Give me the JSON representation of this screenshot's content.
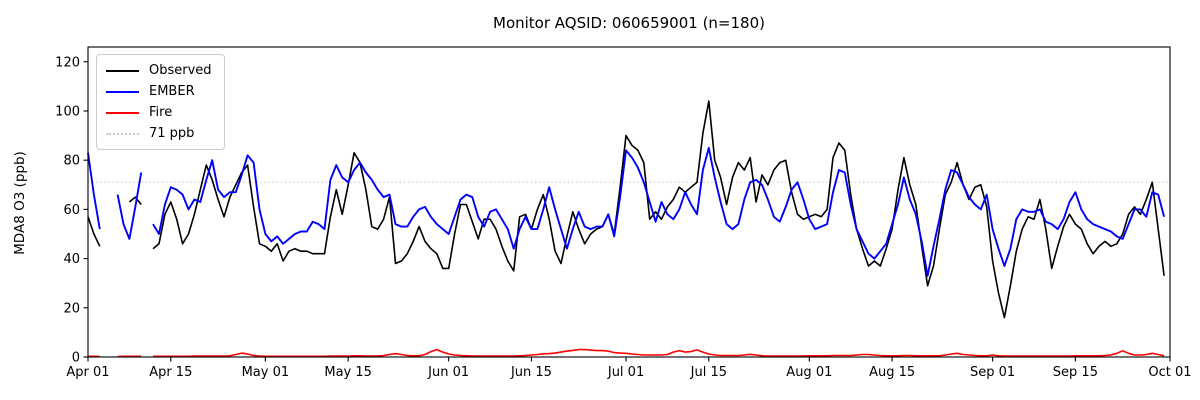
{
  "header": {
    "title": "Monitor AQSID: 060659001 (n=180)"
  },
  "chart_data": {
    "type": "line",
    "title": "Monitor AQSID: 060659001 (n=180)",
    "xlabel": "",
    "ylabel": "MDA8 O3 (ppb)",
    "ylim": [
      0,
      126
    ],
    "grid": false,
    "x_axis": {
      "unit": "day",
      "total_days": 183,
      "start_label": "Apr 01",
      "end_label": "Oct 01",
      "ticks": [
        {
          "day": 0,
          "label": "Apr 01"
        },
        {
          "day": 14,
          "label": "Apr 15"
        },
        {
          "day": 30,
          "label": "May 01"
        },
        {
          "day": 44,
          "label": "May 15"
        },
        {
          "day": 61,
          "label": "Jun 01"
        },
        {
          "day": 75,
          "label": "Jun 15"
        },
        {
          "day": 91,
          "label": "Jul 01"
        },
        {
          "day": 105,
          "label": "Jul 15"
        },
        {
          "day": 122,
          "label": "Aug 01"
        },
        {
          "day": 136,
          "label": "Aug 15"
        },
        {
          "day": 153,
          "label": "Sep 01"
        },
        {
          "day": 167,
          "label": "Sep 15"
        },
        {
          "day": 183,
          "label": "Oct 01"
        }
      ]
    },
    "y_ticks": [
      0,
      20,
      40,
      60,
      80,
      100,
      120
    ],
    "threshold": {
      "value": 71,
      "label": "71 ppb",
      "color": "#d0d0d0"
    },
    "legend": {
      "position": "upper-left",
      "entries": [
        {
          "label": "Observed",
          "color": "#000000",
          "dash": false
        },
        {
          "label": "EMBER",
          "color": "#0000ff",
          "dash": false
        },
        {
          "label": "Fire",
          "color": "#ff0000",
          "dash": false
        },
        {
          "label": "71 ppb",
          "color": "#c8c8c8",
          "dash": true
        }
      ]
    },
    "series": [
      {
        "name": "Observed",
        "color": "#000000",
        "width": 1.6,
        "values": [
          57,
          50,
          45,
          null,
          null,
          null,
          null,
          63,
          65,
          62,
          null,
          44,
          46,
          58,
          63,
          56,
          46,
          50,
          58,
          68,
          78,
          72,
          64,
          57,
          65,
          70,
          75,
          78,
          61,
          46,
          45,
          43,
          46,
          39,
          43,
          44,
          43,
          43,
          42,
          42,
          42,
          57,
          68,
          58,
          70,
          83,
          79,
          68,
          53,
          52,
          56,
          65,
          38,
          39,
          42,
          47,
          53,
          47,
          44,
          42,
          36,
          36,
          50,
          62,
          62,
          55,
          48,
          56,
          56,
          52,
          45,
          39,
          35,
          57,
          58,
          52,
          60,
          66,
          56,
          43,
          38,
          49,
          59,
          52,
          46,
          50,
          52,
          53,
          58,
          50,
          69,
          90,
          86,
          84,
          79,
          56,
          59,
          56,
          61,
          64,
          69,
          67,
          69,
          71,
          91,
          104,
          80,
          73,
          62,
          73,
          79,
          76,
          81,
          63,
          74,
          70,
          76,
          79,
          80,
          67,
          58,
          56,
          57,
          58,
          57,
          60,
          81,
          87,
          84,
          66,
          52,
          44,
          37,
          39,
          37,
          44,
          52,
          68,
          81,
          70,
          62,
          45,
          29,
          37,
          52,
          66,
          71,
          79,
          70,
          64,
          69,
          70,
          61,
          39,
          26,
          16,
          29,
          43,
          52,
          57,
          56,
          64,
          52,
          36,
          45,
          53,
          58,
          54,
          52,
          46,
          42,
          45,
          47,
          45,
          46,
          50,
          58,
          61,
          58,
          64,
          71,
          52,
          33
        ]
      },
      {
        "name": "EMBER",
        "color": "#0000ff",
        "width": 1.9,
        "values": [
          83,
          66,
          52,
          null,
          null,
          66,
          54,
          48,
          61,
          75,
          null,
          54,
          50,
          62,
          69,
          68,
          66,
          60,
          64,
          63,
          72,
          80,
          68,
          65,
          67,
          67,
          74,
          82,
          79,
          60,
          50,
          47,
          49,
          46,
          48,
          50,
          51,
          51,
          55,
          54,
          52,
          72,
          78,
          73,
          71,
          76,
          79,
          75,
          72,
          68,
          65,
          66,
          54,
          53,
          53,
          57,
          60,
          61,
          57,
          54,
          52,
          50,
          57,
          64,
          66,
          65,
          57,
          53,
          59,
          60,
          56,
          52,
          44,
          52,
          57,
          52,
          52,
          60,
          69,
          60,
          52,
          44,
          52,
          59,
          53,
          52,
          53,
          53,
          58,
          49,
          65,
          84,
          81,
          77,
          71,
          63,
          55,
          63,
          58,
          56,
          60,
          67,
          62,
          58,
          76,
          85,
          73,
          63,
          54,
          52,
          54,
          64,
          71,
          72,
          70,
          64,
          57,
          55,
          61,
          68,
          71,
          64,
          56,
          52,
          53,
          54,
          67,
          76,
          75,
          62,
          52,
          47,
          42,
          40,
          43,
          46,
          54,
          62,
          73,
          64,
          58,
          47,
          33,
          45,
          56,
          68,
          76,
          75,
          70,
          65,
          62,
          60,
          66,
          52,
          44,
          37,
          44,
          56,
          60,
          59,
          59,
          60,
          55,
          54,
          52,
          56,
          63,
          67,
          60,
          56,
          54,
          53,
          52,
          51,
          49,
          48,
          54,
          60,
          60,
          57,
          67,
          66,
          57
        ]
      },
      {
        "name": "Fire",
        "color": "#ff0000",
        "width": 1.6,
        "values": [
          0.3,
          0.3,
          0.2,
          null,
          null,
          0.2,
          0.3,
          0.3,
          0.3,
          0.3,
          null,
          0.3,
          0.3,
          0.3,
          0.3,
          0.3,
          0.3,
          0.3,
          0.4,
          0.4,
          0.4,
          0.4,
          0.4,
          0.4,
          0.5,
          1.0,
          1.6,
          1.2,
          0.6,
          0.4,
          0.3,
          0.3,
          0.3,
          0.3,
          0.3,
          0.3,
          0.3,
          0.3,
          0.3,
          0.3,
          0.3,
          0.4,
          0.4,
          0.4,
          0.4,
          0.5,
          0.5,
          0.4,
          0.4,
          0.4,
          0.6,
          1.0,
          1.4,
          1.0,
          0.6,
          0.5,
          0.5,
          1.0,
          2.2,
          3.0,
          2.0,
          1.2,
          0.8,
          0.6,
          0.5,
          0.4,
          0.4,
          0.4,
          0.4,
          0.4,
          0.4,
          0.4,
          0.4,
          0.5,
          0.6,
          0.8,
          1.0,
          1.3,
          1.4,
          1.6,
          2.0,
          2.4,
          2.7,
          3.0,
          3.0,
          2.8,
          2.6,
          2.6,
          2.4,
          1.8,
          1.6,
          1.5,
          1.2,
          1.0,
          0.8,
          0.8,
          0.8,
          0.8,
          1.0,
          2.0,
          2.6,
          2.0,
          2.2,
          2.9,
          2.0,
          1.2,
          0.8,
          0.6,
          0.6,
          0.6,
          0.6,
          0.8,
          1.1,
          0.8,
          0.5,
          0.4,
          0.4,
          0.4,
          0.4,
          0.4,
          0.4,
          0.4,
          0.5,
          0.5,
          0.5,
          0.5,
          0.6,
          0.6,
          0.6,
          0.6,
          0.8,
          1.0,
          1.0,
          0.8,
          0.6,
          0.5,
          0.5,
          0.5,
          0.6,
          0.6,
          0.5,
          0.5,
          0.5,
          0.5,
          0.5,
          0.8,
          1.2,
          1.5,
          1.0,
          0.8,
          0.6,
          0.5,
          0.5,
          0.8,
          0.5,
          0.4,
          0.4,
          0.4,
          0.4,
          0.4,
          0.4,
          0.4,
          0.4,
          0.4,
          0.4,
          0.4,
          0.4,
          0.5,
          0.5,
          0.5,
          0.5,
          0.5,
          0.6,
          0.8,
          1.5,
          2.5,
          1.5,
          0.8,
          0.8,
          1.0,
          1.5,
          1.0,
          0.5
        ]
      }
    ]
  }
}
